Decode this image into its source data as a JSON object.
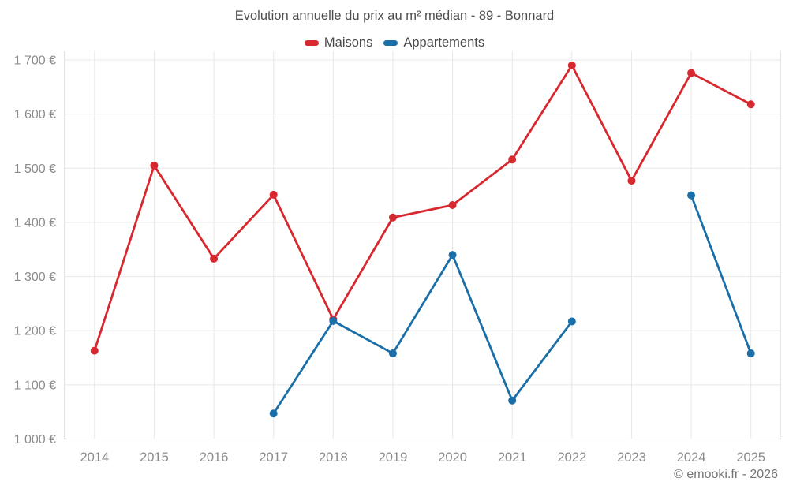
{
  "page": {
    "footer": "© emooki.fr - 2026"
  },
  "chart_data": {
    "type": "line",
    "title": "Evolution annuelle du prix au m² médian - 89 - Bonnard",
    "categories": [
      "2014",
      "2015",
      "2016",
      "2017",
      "2018",
      "2019",
      "2020",
      "2021",
      "2022",
      "2023",
      "2024",
      "2025"
    ],
    "series": [
      {
        "name": "Maisons",
        "color": "#d8282f",
        "values": [
          1163,
          1505,
          1333,
          1451,
          1221,
          1409,
          1432,
          1516,
          1690,
          1477,
          1676,
          1618
        ]
      },
      {
        "name": "Appartements",
        "color": "#1a6fa8",
        "values": [
          null,
          null,
          null,
          1047,
          1218,
          1158,
          1340,
          1071,
          1217,
          null,
          1450,
          1158
        ]
      }
    ],
    "ylabel": "",
    "xlabel": "",
    "ylim": [
      1000,
      1700
    ],
    "y_tick_step": 100,
    "y_ticks": [
      "1 000 €",
      "1 100 €",
      "1 200 €",
      "1 300 €",
      "1 400 €",
      "1 500 €",
      "1 600 €",
      "1 700 €"
    ],
    "grid": true,
    "legend_position": "top",
    "unit": "€"
  },
  "style": {
    "grid_color": "#e8e8e8",
    "axis_color": "#c8c8c8",
    "tick_text_color": "#8b8b8b",
    "title_color": "#4d4d4d",
    "footer_color": "#757575"
  }
}
